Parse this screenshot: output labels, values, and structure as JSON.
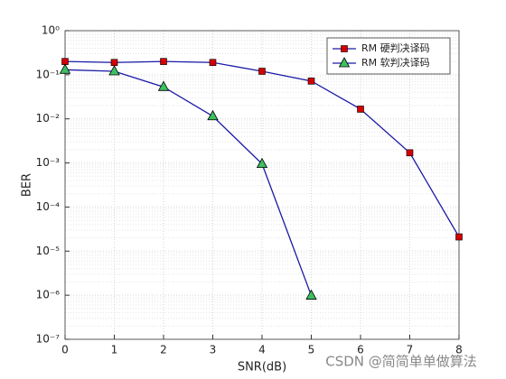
{
  "chart_data": {
    "type": "line",
    "xlabel": "SNR(dB)",
    "ylabel": "BER",
    "x": [
      0,
      1,
      2,
      3,
      4,
      5,
      6,
      7,
      8
    ],
    "series": [
      {
        "name": "RM 硬判决译码",
        "color": "#1a1aa6",
        "marker": "square",
        "marker_color": "#d40000",
        "values": [
          0.2,
          0.19,
          0.2,
          0.19,
          0.12,
          0.072,
          0.0166,
          0.0017,
          2.1e-05
        ]
      },
      {
        "name": "RM 软判决译码",
        "color": "#1a1aa6",
        "marker": "triangle",
        "marker_color": "#3cc060",
        "values": [
          0.13,
          0.12,
          0.053,
          0.0115,
          0.00095,
          9.8e-07,
          null,
          null,
          null
        ]
      }
    ],
    "xlim": [
      0,
      8
    ],
    "xticks": [
      0,
      1,
      2,
      3,
      4,
      5,
      6,
      7,
      8
    ],
    "ylim": [
      1e-07,
      1
    ],
    "ylog": true,
    "yticks": [
      {
        "value": 1e-07,
        "label": "10⁻⁷"
      },
      {
        "value": 1e-06,
        "label": "10⁻⁶"
      },
      {
        "value": 1e-05,
        "label": "10⁻⁵"
      },
      {
        "value": 0.0001,
        "label": "10⁻⁴"
      },
      {
        "value": 0.001,
        "label": "10⁻³"
      },
      {
        "value": 0.01,
        "label": "10⁻²"
      },
      {
        "value": 0.1,
        "label": "10⁻¹"
      },
      {
        "value": 1,
        "label": "10⁰"
      }
    ],
    "grid": true,
    "minor_grid": true,
    "legend": "top-right",
    "watermark": "CSDN @简简单单做算法"
  }
}
